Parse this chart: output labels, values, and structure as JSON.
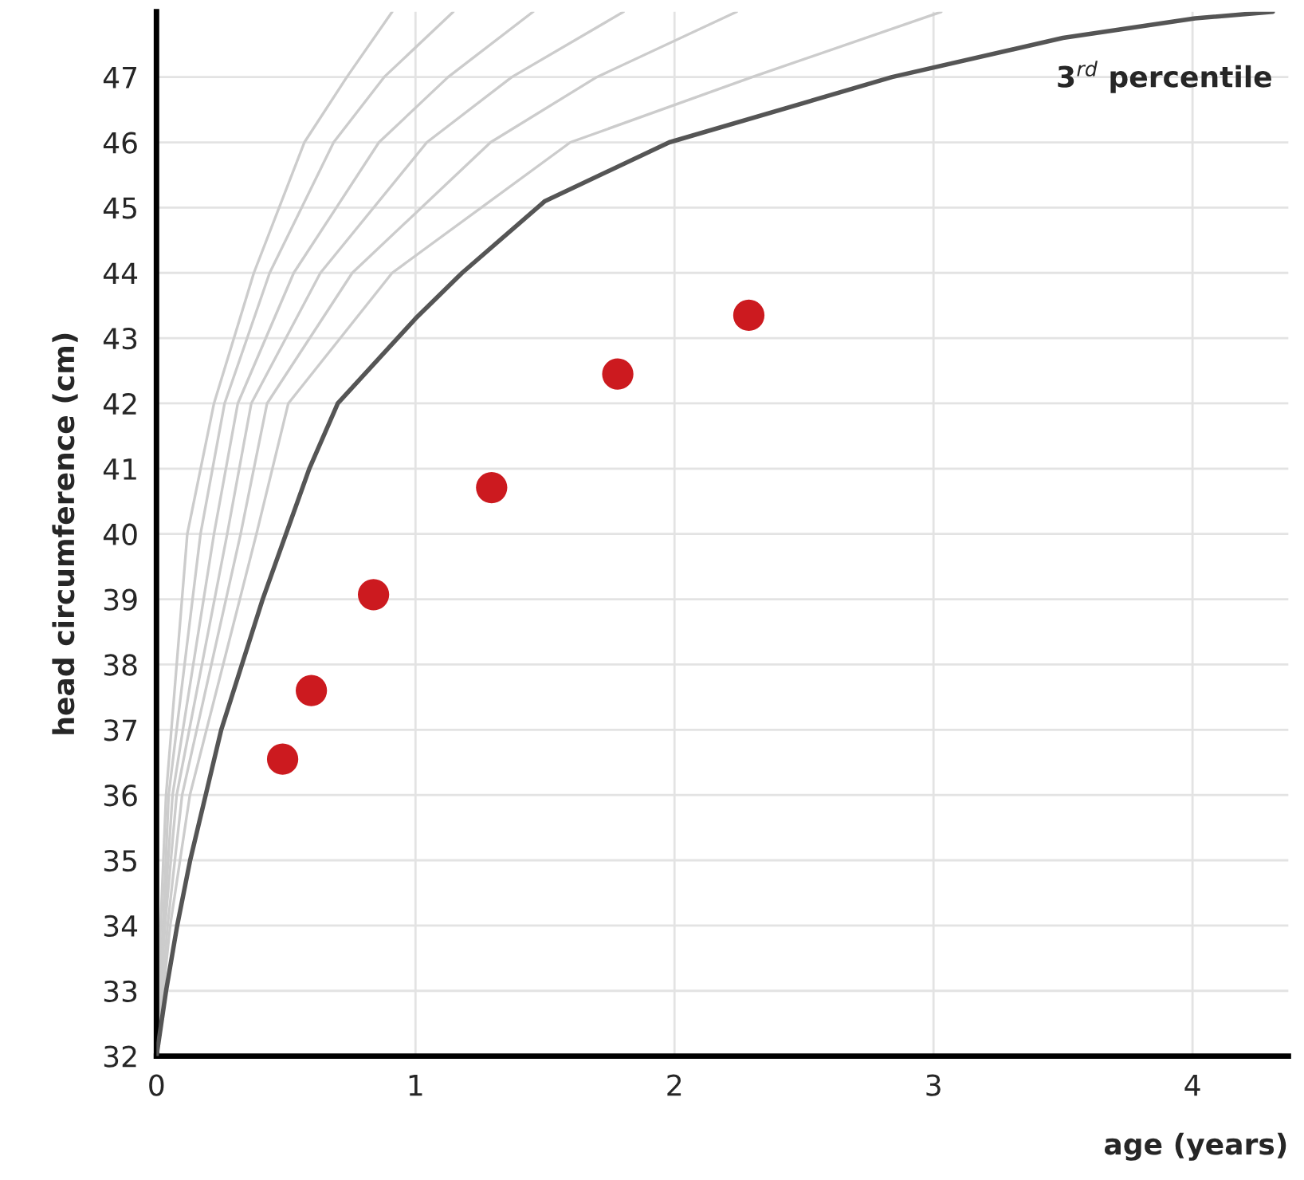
{
  "chart_data": {
    "type": "line",
    "xlabel": "age (years)",
    "ylabel": "head circumference (cm)",
    "xlim": [
      0,
      4.37
    ],
    "ylim": [
      32,
      48
    ],
    "xticks": [
      0,
      1,
      2,
      3,
      4
    ],
    "yticks": [
      32,
      33,
      34,
      35,
      36,
      37,
      38,
      39,
      40,
      41,
      42,
      43,
      44,
      45,
      46,
      47
    ],
    "grid": true,
    "marker": "none",
    "line_style": "solid",
    "series": [
      {
        "color": "#cccccc",
        "x": [
          0,
          0.016,
          0.037,
          0.119,
          0.222,
          0.376,
          0.571,
          0.735,
          0.91
        ],
        "values": [
          32,
          34,
          36,
          40,
          42,
          44,
          46,
          47,
          48
        ]
      },
      {
        "color": "#cccccc",
        "x": [
          0,
          0.025,
          0.047,
          0.17,
          0.263,
          0.437,
          0.684,
          0.879,
          1.146
        ],
        "values": [
          32,
          34,
          36,
          40,
          42,
          44,
          46,
          47,
          48
        ]
      },
      {
        "color": "#cccccc",
        "x": [
          0,
          0.028,
          0.062,
          0.222,
          0.314,
          0.53,
          0.859,
          1.126,
          1.454
        ],
        "values": [
          32,
          34,
          36,
          40,
          42,
          44,
          46,
          47,
          48
        ]
      },
      {
        "color": "#cccccc",
        "x": [
          0,
          0.033,
          0.078,
          0.273,
          0.366,
          0.633,
          1.044,
          1.372,
          1.803
        ],
        "values": [
          32,
          34,
          36,
          40,
          42,
          44,
          46,
          47,
          48
        ]
      },
      {
        "color": "#cccccc",
        "x": [
          0,
          0.043,
          0.099,
          0.325,
          0.427,
          0.756,
          1.29,
          1.7,
          2.24
        ],
        "values": [
          32,
          34,
          36,
          40,
          42,
          44,
          46,
          47,
          48
        ]
      },
      {
        "color": "#cccccc",
        "x": [
          0,
          0.053,
          0.129,
          0.386,
          0.509,
          0.91,
          1.598,
          2.3,
          3.03
        ],
        "values": [
          32,
          34,
          36,
          40,
          42,
          44,
          46,
          47,
          48
        ]
      },
      {
        "name": "3$^{rd}$ percentile",
        "color": "#555555",
        "x": [
          0,
          0.037,
          0.08,
          0.13,
          0.19,
          0.25,
          0.33,
          0.41,
          0.5,
          0.59,
          0.7,
          1.0,
          1.18,
          1.5,
          1.98,
          2.84,
          3.5,
          4.01,
          4.31
        ],
        "values": [
          32,
          33,
          34,
          35,
          36,
          37,
          38,
          39,
          40,
          41,
          42,
          43.3,
          44,
          45.1,
          46,
          47,
          47.6,
          47.9,
          48.0
        ]
      },
      {
        "type": "scatter",
        "marker": "circle",
        "color": "#cc1a1f",
        "x": [
          0.487,
          0.598,
          0.838,
          1.294,
          1.781,
          2.287
        ],
        "values": [
          36.55,
          37.6,
          39.07,
          40.71,
          42.45,
          43.35
        ]
      }
    ]
  }
}
